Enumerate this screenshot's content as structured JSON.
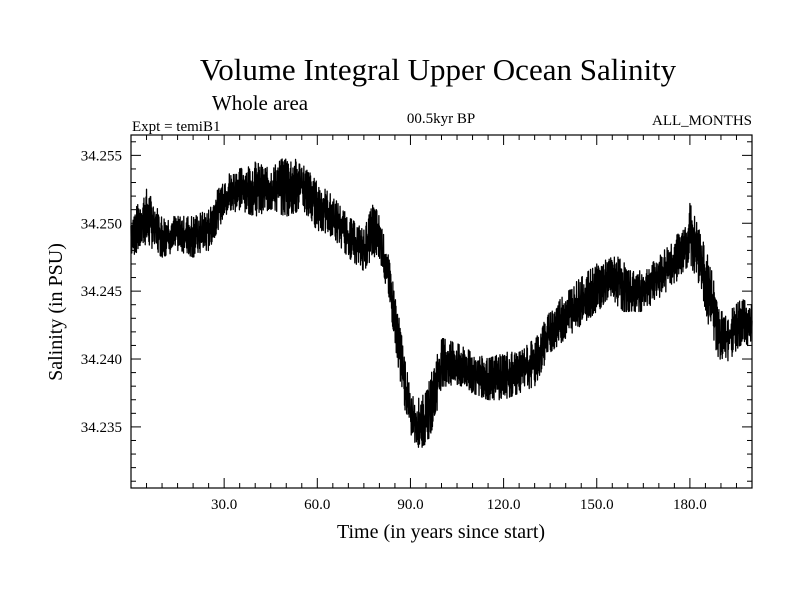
{
  "colors": {
    "line": "#000000",
    "background": "#ffffff",
    "axis": "#000000"
  },
  "chart_data": {
    "type": "line",
    "title": "Volume Integral Upper Ocean Salinity",
    "subtitle": "Whole area",
    "experiment_label": "Expt = temiB1",
    "period_label": "00.5kyr BP",
    "months_label": "ALL_MONTHS",
    "xlabel": "Time (in years since start)",
    "ylabel": "Salinity (in PSU)",
    "xlim": [
      0,
      200
    ],
    "ylim": [
      34.2305,
      34.2565
    ],
    "xticks": [
      30,
      60,
      90,
      120,
      150,
      180
    ],
    "xtick_labels": [
      "30.0",
      "60.0",
      "90.0",
      "120.0",
      "150.0",
      "180.0"
    ],
    "yticks": [
      34.235,
      34.24,
      34.245,
      34.25,
      34.255
    ],
    "ytick_labels": [
      "34.235",
      "34.240",
      "34.245",
      "34.250",
      "34.255"
    ],
    "grid": false,
    "series": [
      {
        "name": "Salinity",
        "description": "monthly values, envelope traced from plot",
        "x": [
          0,
          5,
          10,
          15,
          20,
          25,
          30,
          35,
          40,
          45,
          50,
          55,
          60,
          65,
          70,
          75,
          78,
          80,
          83,
          86,
          88,
          90,
          92,
          95,
          98,
          100,
          103,
          106,
          110,
          115,
          120,
          125,
          130,
          135,
          140,
          145,
          150,
          155,
          158,
          160,
          165,
          170,
          175,
          178,
          180,
          183,
          186,
          190,
          193,
          196,
          200
        ],
        "low": [
          34.2475,
          34.2485,
          34.2475,
          34.248,
          34.2475,
          34.248,
          34.2505,
          34.251,
          34.2505,
          34.251,
          34.2505,
          34.251,
          34.2495,
          34.249,
          34.2475,
          34.2465,
          34.2475,
          34.2475,
          34.2445,
          34.2395,
          34.2365,
          34.2345,
          34.2335,
          34.2335,
          34.2355,
          34.238,
          34.238,
          34.238,
          34.2375,
          34.237,
          34.237,
          34.2375,
          34.238,
          34.2405,
          34.2415,
          34.2425,
          34.2435,
          34.2445,
          34.2435,
          34.2435,
          34.2435,
          34.2445,
          34.2455,
          34.2465,
          34.247,
          34.2455,
          34.2425,
          34.2395,
          34.24,
          34.241,
          34.241
        ],
        "high": [
          34.2505,
          34.2525,
          34.2505,
          34.2505,
          34.2505,
          34.251,
          34.2535,
          34.254,
          34.2545,
          34.254,
          34.255,
          34.2545,
          34.253,
          34.252,
          34.2505,
          34.2495,
          34.2515,
          34.2505,
          34.2475,
          34.2435,
          34.2405,
          34.2375,
          34.237,
          34.2375,
          34.24,
          34.2415,
          34.2415,
          34.241,
          34.2405,
          34.24,
          34.2405,
          34.2405,
          34.2415,
          34.2435,
          34.245,
          34.246,
          34.247,
          34.2475,
          34.2475,
          34.2465,
          34.2465,
          34.2475,
          34.249,
          34.2495,
          34.2515,
          34.2495,
          34.2475,
          34.2435,
          34.2435,
          34.2445,
          34.244
        ]
      }
    ]
  }
}
